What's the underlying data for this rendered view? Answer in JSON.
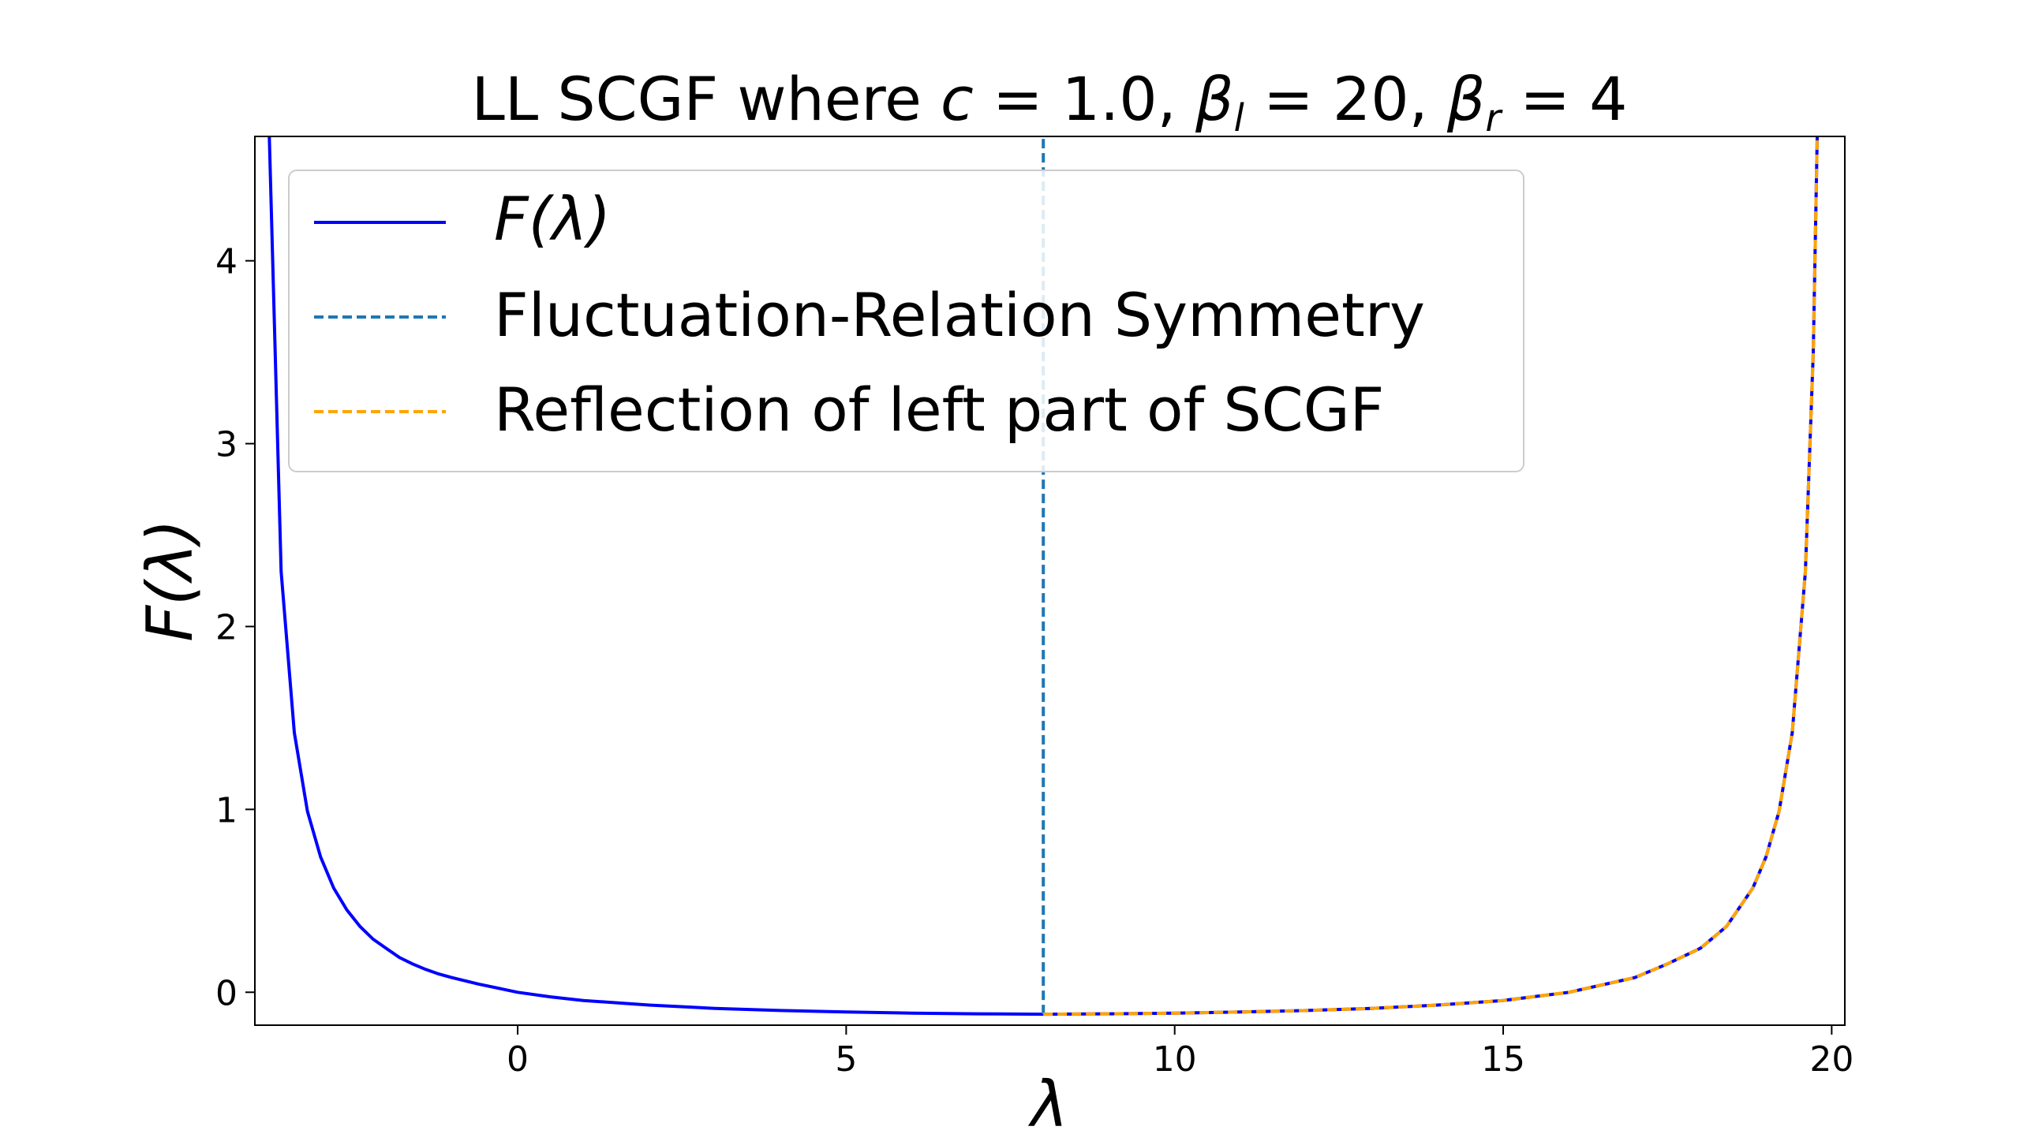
{
  "chart_data": {
    "type": "line",
    "title": {
      "prefix": "LL SCGF where ",
      "c_symbol": "c",
      "c_eq": " = 1.0, ",
      "beta": "β",
      "l_sub": "l",
      "bl_eq": " = 20, ",
      "r_sub": "r",
      "br_eq": " = 4"
    },
    "xlabel": "λ",
    "ylabel": "F(λ)",
    "xlim": [
      -4.0,
      20.2
    ],
    "ylim": [
      -0.18,
      4.68
    ],
    "xticks": [
      0,
      5,
      10,
      15,
      20
    ],
    "yticks": [
      0,
      1,
      2,
      3,
      4
    ],
    "grid": false,
    "legend_position": "upper-left",
    "legend": [
      {
        "label": "F(λ)",
        "italic": true,
        "color": "#0000ff",
        "style": "solid"
      },
      {
        "label": "Fluctuation-Relation Symmetry",
        "italic": false,
        "color": "#1f77b4",
        "style": "dashed"
      },
      {
        "label": "Reflection of left part of SCGF",
        "italic": false,
        "color": "#ffa500",
        "style": "dashed"
      }
    ],
    "series": [
      {
        "name": "F(λ)",
        "color": "#0000ff",
        "style": "solid",
        "x": [
          -3.78,
          -3.6,
          -3.4,
          -3.2,
          -3.0,
          -2.8,
          -2.6,
          -2.4,
          -2.2,
          -2.0,
          -1.8,
          -1.6,
          -1.4,
          -1.2,
          -1.0,
          -0.6,
          -0.2,
          0.0,
          0.5,
          1.0,
          2.0,
          3.0,
          4.0,
          5.0,
          6.0,
          7.0,
          8.0,
          9.0,
          10.0,
          11.0,
          12.0,
          13.0,
          14.0,
          15.0,
          16.0,
          17.0,
          17.5,
          18.0,
          18.4,
          18.8,
          19.0,
          19.2,
          19.4,
          19.6,
          19.72,
          19.78
        ],
        "y": [
          4.68,
          2.3,
          1.42,
          0.99,
          0.74,
          0.57,
          0.45,
          0.36,
          0.29,
          0.24,
          0.19,
          0.155,
          0.125,
          0.1,
          0.08,
          0.045,
          0.015,
          0.0,
          -0.025,
          -0.045,
          -0.07,
          -0.088,
          -0.1,
          -0.108,
          -0.114,
          -0.118,
          -0.12,
          -0.118,
          -0.114,
          -0.108,
          -0.1,
          -0.088,
          -0.07,
          -0.045,
          -0.0,
          0.08,
          0.155,
          0.24,
          0.36,
          0.57,
          0.74,
          0.99,
          1.42,
          2.3,
          3.5,
          4.68
        ]
      },
      {
        "name": "Fluctuation-Relation Symmetry",
        "color": "#1f77b4",
        "style": "dashed",
        "x": [
          8.0,
          8.0
        ],
        "y": [
          -0.12,
          4.68
        ]
      },
      {
        "name": "Reflection of left part of SCGF",
        "color": "#ffa500",
        "style": "dashed",
        "x": [
          8.0,
          9.0,
          10.0,
          11.0,
          12.0,
          13.0,
          14.0,
          15.0,
          16.0,
          17.0,
          17.5,
          18.0,
          18.4,
          18.8,
          19.0,
          19.2,
          19.4,
          19.6,
          19.72,
          19.78
        ],
        "y": [
          -0.12,
          -0.118,
          -0.114,
          -0.108,
          -0.1,
          -0.088,
          -0.07,
          -0.045,
          -0.0,
          0.08,
          0.155,
          0.24,
          0.36,
          0.57,
          0.74,
          0.99,
          1.42,
          2.3,
          3.5,
          4.68
        ]
      }
    ]
  }
}
